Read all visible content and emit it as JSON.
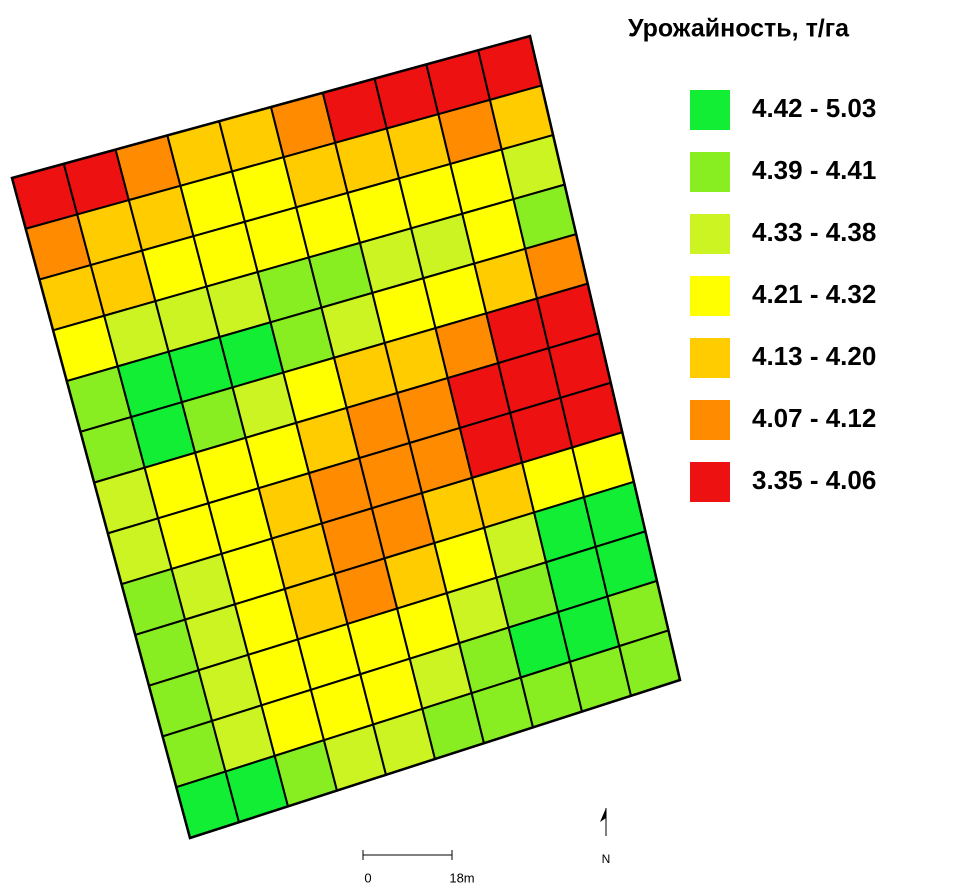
{
  "title": "Урожайность, т/га",
  "legend": [
    {
      "label": "4.42 - 5.03",
      "color": "#11ee33"
    },
    {
      "label": "4.39 - 4.41",
      "color": "#88ee22"
    },
    {
      "label": "4.33 - 4.38",
      "color": "#ccf422"
    },
    {
      "label": "4.21 - 4.32",
      "color": "#ffff00"
    },
    {
      "label": "4.13 - 4.20",
      "color": "#ffcc00"
    },
    {
      "label": "4.07 - 4.12",
      "color": "#ff8c00"
    },
    {
      "label": "3.35 - 4.06",
      "color": "#ee1111"
    }
  ],
  "scale_bar": {
    "start": "0",
    "end": "18m"
  },
  "north": "N"
}
